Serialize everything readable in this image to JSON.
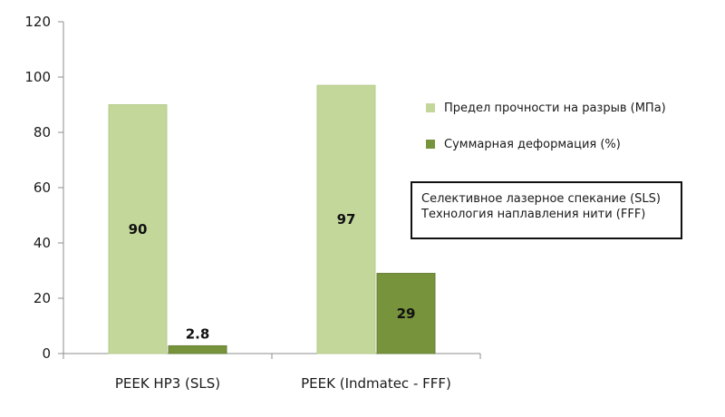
{
  "chart_data": {
    "type": "bar",
    "categories": [
      "PEEK HP3 (SLS)",
      "PEEK (Indmatec - FFF)"
    ],
    "series": [
      {
        "name": "Предел прочности на разрыв (МПа)",
        "values": [
          90,
          97
        ],
        "labels": [
          "90",
          "97"
        ],
        "color": "#c4d79b"
      },
      {
        "name": "Суммарная деформация (%)",
        "values": [
          2.8,
          29
        ],
        "labels": [
          "2.8",
          "29"
        ],
        "color": "#77933c"
      }
    ],
    "ylim": [
      0,
      120
    ],
    "yticks": [
      0,
      20,
      40,
      60,
      80,
      100,
      120
    ],
    "grid": false,
    "legend_position": "right",
    "annotations": [
      "Селективное лазерное спекание (SLS)",
      "Технология наплавления нити (FFF)"
    ]
  }
}
